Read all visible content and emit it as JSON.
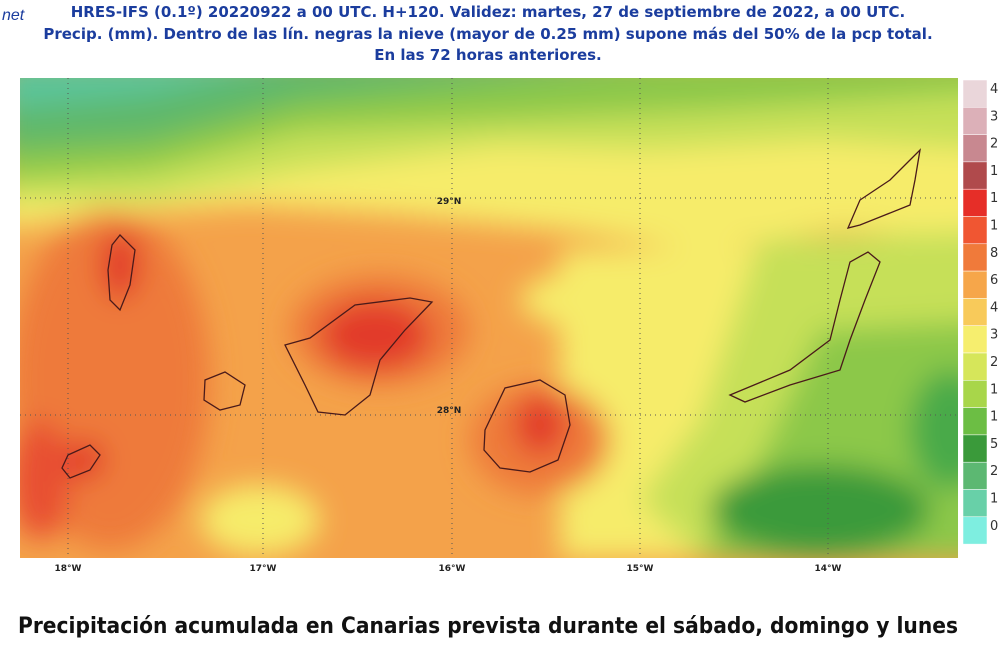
{
  "header": {
    "logo": "net",
    "lines": [
      "HRES-IFS (0.1º) 20220922 a 00 UTC.  H+120. Validez: martes, 27 de septiembre de 2022,  a  00 UTC.",
      "Precip. (mm). Dentro de las lín. negras la nieve (mayor de 0.25 mm) supone más del 50% de la pcp total.",
      "En las 72 horas anteriores."
    ]
  },
  "map": {
    "lat_labels": [
      "29°N",
      "28°N"
    ],
    "lon_labels": [
      "18°W",
      "17°W",
      "16°W",
      "15°W",
      "14°W"
    ]
  },
  "legend": {
    "labels": [
      "4",
      "3",
      "2",
      "1",
      "1",
      "1",
      "8",
      "6",
      "4",
      "3",
      "2",
      "1",
      "1",
      "5",
      "2",
      "1",
      "0"
    ]
  },
  "caption": "Precipitación  acumulada en Canarias prevista durante el sábado, domingo y lunes"
}
